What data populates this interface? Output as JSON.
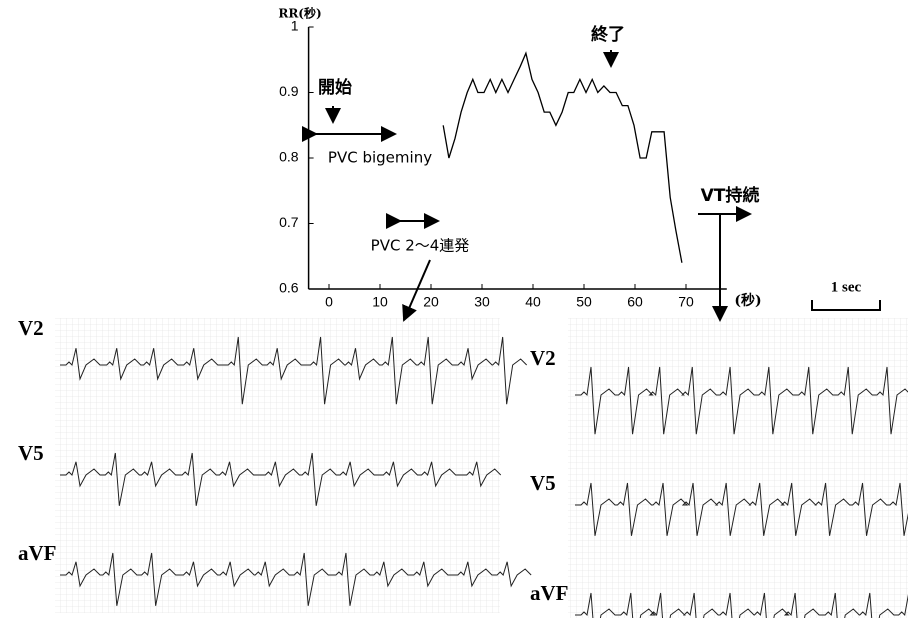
{
  "chart_data": {
    "type": "line",
    "y_label": "RR(秒)",
    "x_label": "(秒)",
    "x": [
      22.4,
      23.5,
      24.7,
      25.9,
      27.1,
      28.2,
      29.2,
      30.4,
      31.6,
      32.7,
      33.9,
      35.1,
      36.3,
      37.5,
      38.6,
      39.8,
      41,
      42.2,
      43.3,
      44.5,
      45.7,
      46.9,
      48,
      49.2,
      50.4,
      51.6,
      52.7,
      53.9,
      55.1,
      56.3,
      57.5,
      58.6,
      59.8,
      61,
      62.2,
      63.3,
      64.5,
      65.7,
      66.9,
      68,
      69.2
    ],
    "values": [
      0.85,
      0.8,
      0.83,
      0.87,
      0.9,
      0.92,
      0.9,
      0.9,
      0.92,
      0.9,
      0.92,
      0.9,
      0.92,
      0.94,
      0.96,
      0.92,
      0.9,
      0.87,
      0.87,
      0.85,
      0.87,
      0.9,
      0.9,
      0.92,
      0.9,
      0.92,
      0.9,
      0.91,
      0.9,
      0.9,
      0.88,
      0.88,
      0.85,
      0.8,
      0.8,
      0.84,
      0.84,
      0.84,
      0.74,
      0.69,
      0.64
    ],
    "color": "#000000",
    "xlim": [
      -4,
      78
    ],
    "ylim": [
      0.6,
      1
    ],
    "xticks": [
      0,
      10,
      20,
      30,
      40,
      50,
      60,
      70
    ],
    "yticks": [
      0.6,
      0.7,
      0.8,
      0.9,
      1
    ],
    "annotations": [
      "開始",
      "PVC bigeminy",
      "PVC 2～4連発",
      "終了",
      "VT持続"
    ]
  },
  "ecg": {
    "left_leads": [
      "V2",
      "V5",
      "aVF"
    ],
    "right_leads": [
      "V2",
      "V5",
      "aVF"
    ],
    "scale_bar": "1 sec"
  }
}
